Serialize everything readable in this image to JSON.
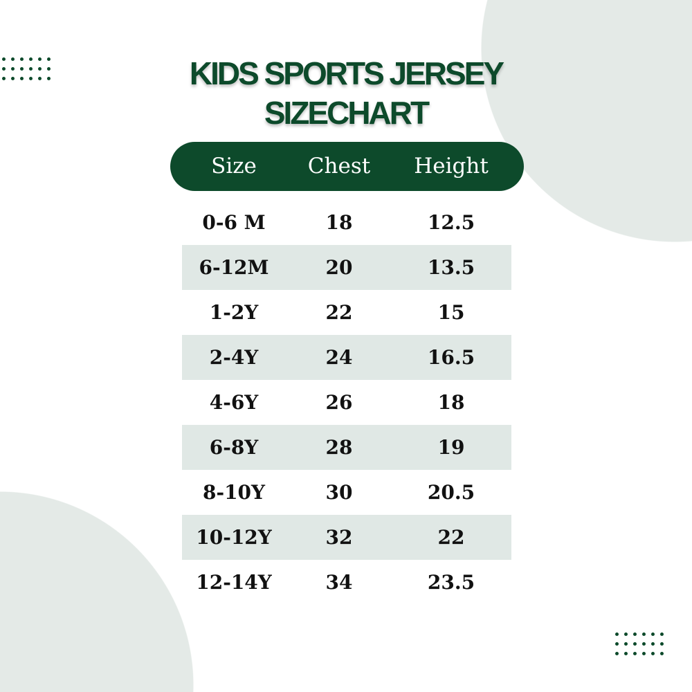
{
  "title": {
    "line1": "KIDS SPORTS JERSEY",
    "line2": "SIZECHART"
  },
  "colors": {
    "accent": "#0d4a2b",
    "stripe": "#d6e0dc",
    "background_blob": "#e4eae7"
  },
  "table": {
    "headers": [
      "Size",
      "Chest",
      "Height"
    ],
    "rows": [
      [
        "0-6 M",
        "18",
        "12.5"
      ],
      [
        "6-12M",
        "20",
        "13.5"
      ],
      [
        "1-2Y",
        "22",
        "15"
      ],
      [
        "2-4Y",
        "24",
        "16.5"
      ],
      [
        "4-6Y",
        "26",
        "18"
      ],
      [
        "6-8Y",
        "28",
        "19"
      ],
      [
        "8-10Y",
        "30",
        "20.5"
      ],
      [
        "10-12Y",
        "32",
        "22"
      ],
      [
        "12-14Y",
        "34",
        "23.5"
      ]
    ]
  }
}
